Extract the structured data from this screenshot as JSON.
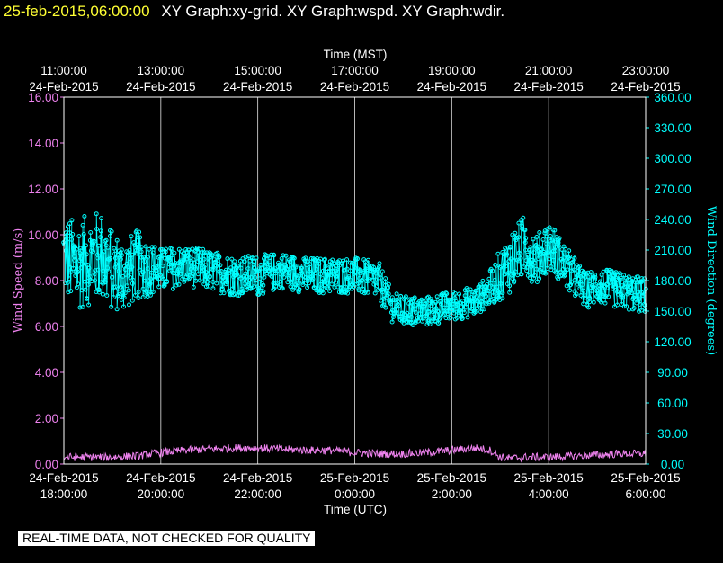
{
  "header": {
    "timestamp": "25-feb-2015,06:00:00",
    "graphs": "XY Graph:xy-grid.  XY Graph:wspd.  XY Graph:wdir."
  },
  "notice": "REAL-TIME DATA, NOT CHECKED FOR QUALITY",
  "colors": {
    "speed": "#ee82ee",
    "direction": "#00ffff",
    "grid": "#ffffff",
    "title_timestamp": "#ffff33"
  },
  "chart_data": {
    "type": "line",
    "top_axis": {
      "label": "Time (MST)",
      "ticks": [
        {
          "time": "11:00:00",
          "date": "24-Feb-2015"
        },
        {
          "time": "13:00:00",
          "date": "24-Feb-2015"
        },
        {
          "time": "15:00:00",
          "date": "24-Feb-2015"
        },
        {
          "time": "17:00:00",
          "date": "24-Feb-2015"
        },
        {
          "time": "19:00:00",
          "date": "24-Feb-2015"
        },
        {
          "time": "21:00:00",
          "date": "24-Feb-2015"
        },
        {
          "time": "23:00:00",
          "date": "24-Feb-2015"
        }
      ]
    },
    "bottom_axis": {
      "label": "Time (UTC)",
      "ticks": [
        {
          "date": "24-Feb-2015",
          "time": "18:00:00"
        },
        {
          "date": "24-Feb-2015",
          "time": "20:00:00"
        },
        {
          "date": "24-Feb-2015",
          "time": "22:00:00"
        },
        {
          "date": "25-Feb-2015",
          "time": "0:00:00"
        },
        {
          "date": "25-Feb-2015",
          "time": "2:00:00"
        },
        {
          "date": "25-Feb-2015",
          "time": "4:00:00"
        },
        {
          "date": "25-Feb-2015",
          "time": "6:00:00"
        }
      ]
    },
    "x_range_hours_utc": [
      18,
      30
    ],
    "left_axis": {
      "label": "Wind Speed (m/s)",
      "ylim": [
        0,
        16
      ],
      "ticks": [
        "0.00",
        "2.00",
        "4.00",
        "6.00",
        "8.00",
        "10.00",
        "12.00",
        "14.00",
        "16.00"
      ]
    },
    "right_axis": {
      "label": "Wind Direction (degrees)",
      "ylim": [
        0,
        360
      ],
      "ticks": [
        "0.00",
        "30.00",
        "60.00",
        "90.00",
        "120.00",
        "150.00",
        "180.00",
        "210.00",
        "240.00",
        "270.00",
        "300.00",
        "330.00",
        "360.00"
      ]
    },
    "grid": "vertical lines at labeled time ticks",
    "series": [
      {
        "axis": "left",
        "style": "line",
        "x_hours_utc": [
          18.0,
          18.5,
          19.0,
          19.5,
          20.0,
          20.5,
          21.0,
          21.5,
          22.0,
          22.5,
          23.0,
          23.5,
          24.0,
          24.5,
          25.0,
          25.5,
          26.0,
          26.5,
          26.8,
          27.0,
          27.2,
          27.5,
          28.0,
          28.5,
          29.0,
          29.5,
          30.0
        ],
        "values": [
          0.3,
          0.3,
          0.3,
          0.35,
          0.5,
          0.6,
          0.65,
          0.7,
          0.7,
          0.65,
          0.6,
          0.6,
          0.5,
          0.45,
          0.45,
          0.5,
          0.6,
          0.7,
          0.6,
          0.3,
          0.25,
          0.3,
          0.3,
          0.35,
          0.4,
          0.45,
          0.45
        ]
      },
      {
        "axis": "right",
        "style": "scatter",
        "x_hours_utc": [
          18.0,
          18.25,
          18.5,
          18.75,
          19.0,
          19.25,
          19.5,
          20.0,
          20.5,
          21.0,
          21.5,
          22.0,
          22.5,
          23.0,
          23.5,
          24.0,
          24.5,
          24.75,
          25.0,
          25.5,
          26.0,
          26.5,
          26.75,
          27.0,
          27.25,
          27.5,
          27.75,
          28.0,
          28.25,
          28.5,
          28.75,
          29.0,
          29.5,
          30.0
        ],
        "values": [
          205,
          195,
          200,
          205,
          190,
          185,
          195,
          190,
          195,
          190,
          185,
          185,
          190,
          185,
          185,
          185,
          180,
          155,
          150,
          150,
          155,
          160,
          170,
          185,
          200,
          215,
          200,
          215,
          200,
          185,
          170,
          175,
          170,
          165
        ],
        "spread": [
          40,
          45,
          45,
          45,
          40,
          35,
          35,
          22,
          20,
          20,
          20,
          20,
          18,
          18,
          18,
          18,
          18,
          15,
          15,
          15,
          15,
          15,
          15,
          25,
          30,
          30,
          25,
          25,
          22,
          20,
          18,
          18,
          18,
          18
        ]
      }
    ]
  }
}
